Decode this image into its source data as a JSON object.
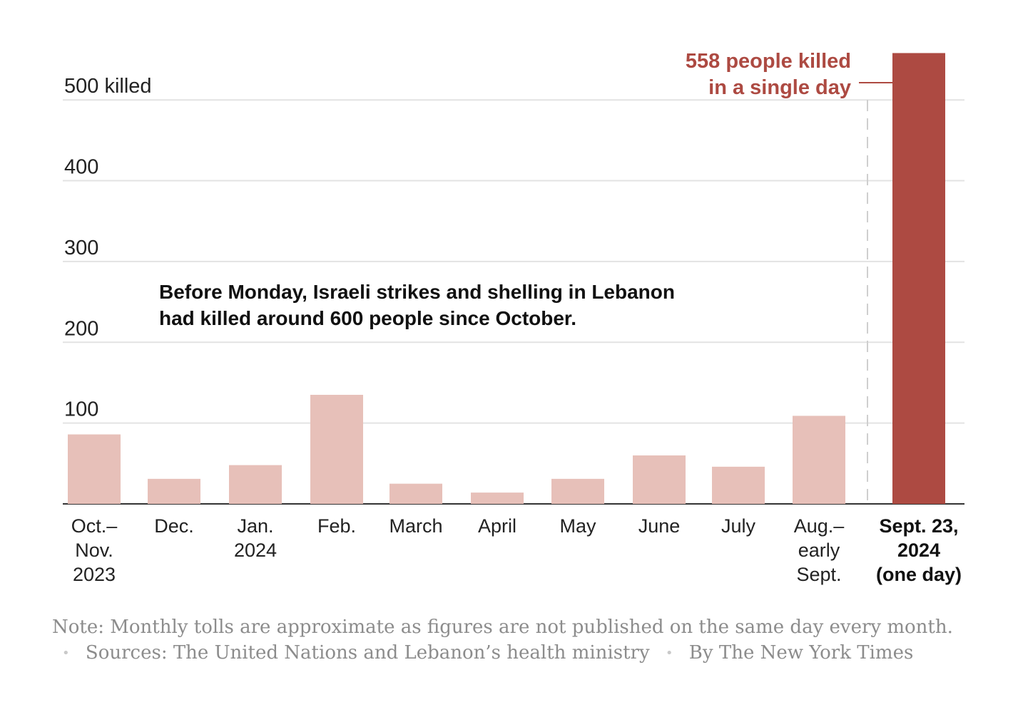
{
  "chart_data": {
    "type": "bar",
    "title": "",
    "xlabel": "",
    "ylabel": "killed",
    "ylim": [
      0,
      560
    ],
    "yticks": [
      {
        "value": 100,
        "label": "100"
      },
      {
        "value": 200,
        "label": "200"
      },
      {
        "value": 300,
        "label": "300"
      },
      {
        "value": 400,
        "label": "400"
      },
      {
        "value": 500,
        "label": "500 killed"
      }
    ],
    "categories": [
      [
        "Oct.–",
        "Nov.",
        "2023"
      ],
      [
        "Dec."
      ],
      [
        "Jan.",
        "2024"
      ],
      [
        "Feb."
      ],
      [
        "March"
      ],
      [
        "April"
      ],
      [
        "May"
      ],
      [
        "June"
      ],
      [
        "July"
      ],
      [
        "Aug.–",
        "early",
        "Sept."
      ],
      [
        "Sept. 23,",
        "2024",
        "(one day)"
      ]
    ],
    "values": [
      86,
      31,
      48,
      135,
      25,
      14,
      31,
      60,
      46,
      109,
      558
    ],
    "highlight_index": 10,
    "colors": {
      "regular": "#e7c0b9",
      "highlight": "#ad4a42",
      "grid": "#e3e3e3",
      "axis": "#333333"
    },
    "annotations": {
      "callout": [
        "558 people killed",
        "in a single day"
      ],
      "body": [
        "Before Monday, Israeli strikes and shelling in Lebanon",
        "had killed around 600 people since October."
      ]
    }
  },
  "footer": {
    "note": "Note: Monthly tolls are approximate as figures are not published on the same day every month.",
    "separator": "•",
    "sources": "Sources: The United Nations and Lebanon’s health ministry",
    "credit": "By The New York Times"
  }
}
